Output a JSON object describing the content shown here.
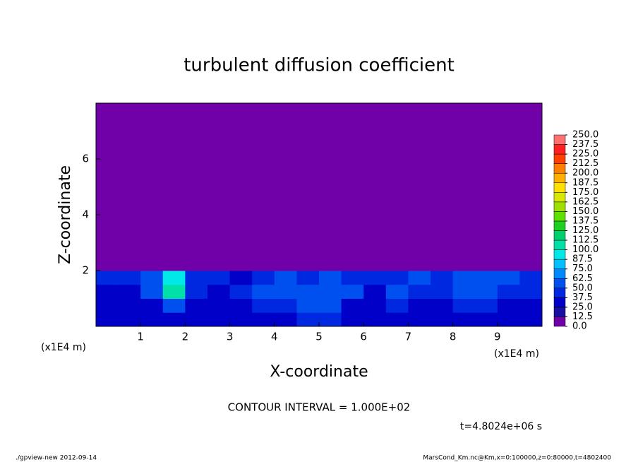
{
  "chart_data": {
    "type": "heatmap",
    "title": "turbulent diffusion coefficient",
    "xlabel": "X-coordinate",
    "ylabel": "Z-coordinate",
    "x_unit_label": "(x1E4 m)",
    "xlim": [
      0,
      10
    ],
    "ylim": [
      0,
      8
    ],
    "xticks": [
      1,
      2,
      3,
      4,
      5,
      6,
      7,
      8,
      9
    ],
    "yticks": [
      2,
      4,
      6
    ],
    "x_bins": [
      0,
      0.5,
      1,
      1.5,
      2,
      2.5,
      3,
      3.5,
      4,
      4.5,
      5,
      5.5,
      6,
      6.5,
      7,
      7.5,
      8,
      8.5,
      9,
      9.5,
      10
    ],
    "z_bins": [
      0,
      0.5,
      1,
      1.5,
      2,
      8
    ],
    "values": [
      [
        25,
        30,
        25,
        25,
        35,
        25,
        25,
        30,
        25,
        45,
        40,
        25,
        25,
        30,
        25,
        25,
        30,
        25,
        25,
        30
      ],
      [
        30,
        25,
        35,
        60,
        35,
        30,
        30,
        40,
        45,
        60,
        55,
        30,
        30,
        40,
        35,
        30,
        40,
        45,
        30,
        35
      ],
      [
        35,
        30,
        50,
        110,
        40,
        35,
        40,
        55,
        60,
        50,
        60,
        55,
        35,
        55,
        45,
        40,
        50,
        60,
        45,
        40
      ],
      [
        40,
        45,
        60,
        90,
        45,
        40,
        35,
        40,
        55,
        45,
        50,
        45,
        40,
        45,
        50,
        45,
        55,
        60,
        50,
        45
      ],
      [
        0,
        0,
        0,
        0,
        0,
        0,
        0,
        0,
        0,
        0,
        0,
        0,
        0,
        0,
        0,
        0,
        0,
        0,
        0,
        0
      ]
    ],
    "levels": [
      {
        "value": 0,
        "label": "0.0"
      },
      12.5,
      {
        "value": 25,
        "label": "25.0"
      },
      37.5,
      {
        "value": 50,
        "label": "50.0"
      },
      62.5,
      {
        "value": 75,
        "label": "75.0"
      },
      87.5,
      {
        "value": 100,
        "label": "100.0"
      },
      112.5,
      {
        "value": 125,
        "label": "125.0"
      },
      137.5,
      {
        "value": 150,
        "label": "150.0"
      },
      162.5,
      {
        "value": 175,
        "label": "175.0"
      },
      187.5,
      {
        "value": 200,
        "label": "200.0"
      },
      212.5,
      {
        "value": 225,
        "label": "225.0"
      },
      237.5,
      {
        "value": 250,
        "label": "250.0"
      }
    ],
    "colors": [
      "#7000a8",
      "#1810a0",
      "#0000c8",
      "#0028e0",
      "#0050f0",
      "#0088ff",
      "#00c0ff",
      "#00e8e8",
      "#00e0a8",
      "#00d070",
      "#20d020",
      "#60e000",
      "#a0e000",
      "#d8e800",
      "#ffe000",
      "#ffb000",
      "#ff8000",
      "#ff4000",
      "#ff2020",
      "#ff7070"
    ],
    "contour_interval": "CONTOUR INTERVAL = 1.000E+02",
    "time_label": "t=4.8024e+06 s",
    "footer_left": "./gpview-new  2012-09-14",
    "footer_right": "MarsCond_Km.nc@Km,x=0:100000,z=0:80000,t=4802400"
  }
}
